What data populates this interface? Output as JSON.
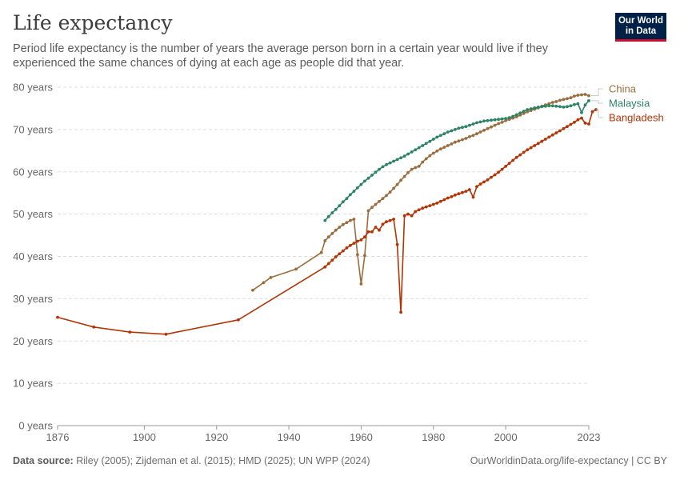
{
  "header": {
    "title": "Life expectancy",
    "subtitle": "Period life expectancy is the number of years the average person born in a certain year would live if they experienced the same chances of dying at each age as people did that year."
  },
  "logo": {
    "line1": "Our World",
    "line2": "in Data",
    "bg": "#002147",
    "accent": "#c8102e"
  },
  "footer": {
    "source_label": "Data source:",
    "source_text": "Riley (2005); Zijdeman et al. (2015); HMD (2025); UN WPP (2024)",
    "link": "OurWorldinData.org/life-expectancy",
    "license": "CC BY"
  },
  "chart_data": {
    "type": "line",
    "title": "Life expectancy",
    "xlim": [
      1876,
      2023
    ],
    "ylim": [
      0,
      80
    ],
    "y_ticks": [
      0,
      10,
      20,
      30,
      40,
      50,
      60,
      70,
      80
    ],
    "y_tick_labels": [
      "0 years",
      "10 years",
      "20 years",
      "30 years",
      "40 years",
      "50 years",
      "60 years",
      "70 years",
      "80 years"
    ],
    "x_ticks": [
      1876,
      1900,
      1920,
      1940,
      1960,
      1980,
      2000,
      2023
    ],
    "x_tick_labels": [
      "1876",
      "1900",
      "1920",
      "1940",
      "1960",
      "1980",
      "2000",
      "2023"
    ],
    "grid": "horizontal dashed",
    "legend": "right (labels at line ends)",
    "series": [
      {
        "name": "China",
        "color": "#9a6d3f",
        "points": [
          [
            1930,
            32.0
          ],
          [
            1933,
            33.8
          ],
          [
            1935,
            35.0
          ],
          [
            1942,
            37.0
          ],
          [
            1949,
            40.9
          ],
          [
            1950,
            43.7
          ],
          [
            1951,
            44.6
          ],
          [
            1952,
            45.4
          ],
          [
            1953,
            46.2
          ],
          [
            1954,
            46.9
          ],
          [
            1955,
            47.5
          ],
          [
            1956,
            48.0
          ],
          [
            1957,
            48.5
          ],
          [
            1958,
            48.8
          ],
          [
            1959,
            40.4
          ],
          [
            1960,
            33.5
          ],
          [
            1961,
            40.2
          ],
          [
            1962,
            50.8
          ],
          [
            1963,
            51.6
          ],
          [
            1964,
            52.3
          ],
          [
            1965,
            53.0
          ],
          [
            1966,
            53.7
          ],
          [
            1967,
            54.4
          ],
          [
            1968,
            55.2
          ],
          [
            1969,
            56.1
          ],
          [
            1970,
            57.0
          ],
          [
            1971,
            58.0
          ],
          [
            1972,
            58.9
          ],
          [
            1973,
            59.8
          ],
          [
            1974,
            60.6
          ],
          [
            1975,
            61.0
          ],
          [
            1976,
            61.3
          ],
          [
            1977,
            62.3
          ],
          [
            1978,
            63.1
          ],
          [
            1979,
            63.8
          ],
          [
            1980,
            64.4
          ],
          [
            1981,
            64.9
          ],
          [
            1982,
            65.4
          ],
          [
            1983,
            65.8
          ],
          [
            1984,
            66.2
          ],
          [
            1985,
            66.6
          ],
          [
            1986,
            67.0
          ],
          [
            1987,
            67.3
          ],
          [
            1988,
            67.6
          ],
          [
            1989,
            67.9
          ],
          [
            1990,
            68.3
          ],
          [
            1991,
            68.6
          ],
          [
            1992,
            69.0
          ],
          [
            1993,
            69.4
          ],
          [
            1994,
            69.8
          ],
          [
            1995,
            70.2
          ],
          [
            1996,
            70.6
          ],
          [
            1997,
            71.0
          ],
          [
            1998,
            71.4
          ],
          [
            1999,
            71.7
          ],
          [
            2000,
            72.1
          ],
          [
            2001,
            72.4
          ],
          [
            2002,
            72.7
          ],
          [
            2003,
            73.0
          ],
          [
            2004,
            73.4
          ],
          [
            2005,
            73.8
          ],
          [
            2006,
            74.2
          ],
          [
            2007,
            74.5
          ],
          [
            2008,
            74.8
          ],
          [
            2009,
            75.1
          ],
          [
            2010,
            75.5
          ],
          [
            2011,
            75.8
          ],
          [
            2012,
            76.1
          ],
          [
            2013,
            76.4
          ],
          [
            2014,
            76.6
          ],
          [
            2015,
            76.9
          ],
          [
            2016,
            77.1
          ],
          [
            2017,
            77.3
          ],
          [
            2018,
            77.5
          ],
          [
            2019,
            77.9
          ],
          [
            2020,
            78.1
          ],
          [
            2021,
            78.2
          ],
          [
            2022,
            78.3
          ],
          [
            2023,
            78.0
          ]
        ]
      },
      {
        "name": "Malaysia",
        "color": "#2c8465",
        "points": [
          [
            1950,
            48.5
          ],
          [
            1951,
            49.4
          ],
          [
            1952,
            50.3
          ],
          [
            1953,
            51.1
          ],
          [
            1954,
            52.0
          ],
          [
            1955,
            52.9
          ],
          [
            1956,
            53.7
          ],
          [
            1957,
            54.6
          ],
          [
            1958,
            55.4
          ],
          [
            1959,
            56.2
          ],
          [
            1960,
            57.0
          ],
          [
            1961,
            57.8
          ],
          [
            1962,
            58.5
          ],
          [
            1963,
            59.2
          ],
          [
            1964,
            59.9
          ],
          [
            1965,
            60.6
          ],
          [
            1966,
            61.2
          ],
          [
            1967,
            61.7
          ],
          [
            1968,
            62.1
          ],
          [
            1969,
            62.5
          ],
          [
            1970,
            62.9
          ],
          [
            1971,
            63.3
          ],
          [
            1972,
            63.7
          ],
          [
            1973,
            64.2
          ],
          [
            1974,
            64.7
          ],
          [
            1975,
            65.2
          ],
          [
            1976,
            65.7
          ],
          [
            1977,
            66.2
          ],
          [
            1978,
            66.7
          ],
          [
            1979,
            67.2
          ],
          [
            1980,
            67.7
          ],
          [
            1981,
            68.2
          ],
          [
            1982,
            68.6
          ],
          [
            1983,
            69.0
          ],
          [
            1984,
            69.4
          ],
          [
            1985,
            69.7
          ],
          [
            1986,
            70.0
          ],
          [
            1987,
            70.3
          ],
          [
            1988,
            70.5
          ],
          [
            1989,
            70.7
          ],
          [
            1990,
            71.0
          ],
          [
            1991,
            71.3
          ],
          [
            1992,
            71.6
          ],
          [
            1993,
            71.8
          ],
          [
            1994,
            72.0
          ],
          [
            1995,
            72.1
          ],
          [
            1996,
            72.2
          ],
          [
            1997,
            72.3
          ],
          [
            1998,
            72.4
          ],
          [
            1999,
            72.5
          ],
          [
            2000,
            72.6
          ],
          [
            2001,
            72.8
          ],
          [
            2002,
            73.1
          ],
          [
            2003,
            73.5
          ],
          [
            2004,
            73.9
          ],
          [
            2005,
            74.3
          ],
          [
            2006,
            74.7
          ],
          [
            2007,
            74.9
          ],
          [
            2008,
            75.1
          ],
          [
            2009,
            75.3
          ],
          [
            2010,
            75.4
          ],
          [
            2011,
            75.5
          ],
          [
            2012,
            75.6
          ],
          [
            2013,
            75.6
          ],
          [
            2014,
            75.5
          ],
          [
            2015,
            75.4
          ],
          [
            2016,
            75.3
          ],
          [
            2017,
            75.4
          ],
          [
            2018,
            75.6
          ],
          [
            2019,
            75.9
          ],
          [
            2020,
            76.1
          ],
          [
            2021,
            74.0
          ],
          [
            2022,
            75.8
          ],
          [
            2023,
            76.8
          ]
        ]
      },
      {
        "name": "Bangladesh",
        "color": "#b13507",
        "points": [
          [
            1876,
            25.6
          ],
          [
            1886,
            23.3
          ],
          [
            1896,
            22.1
          ],
          [
            1906,
            21.6
          ],
          [
            1926,
            25.0
          ],
          [
            1950,
            37.5
          ],
          [
            1951,
            38.3
          ],
          [
            1952,
            39.1
          ],
          [
            1953,
            39.9
          ],
          [
            1954,
            40.6
          ],
          [
            1955,
            41.3
          ],
          [
            1956,
            42.0
          ],
          [
            1957,
            42.6
          ],
          [
            1958,
            43.1
          ],
          [
            1959,
            43.6
          ],
          [
            1960,
            43.9
          ],
          [
            1961,
            44.6
          ],
          [
            1962,
            45.8
          ],
          [
            1963,
            45.8
          ],
          [
            1964,
            46.9
          ],
          [
            1965,
            46.2
          ],
          [
            1966,
            47.6
          ],
          [
            1967,
            48.2
          ],
          [
            1968,
            48.5
          ],
          [
            1969,
            48.8
          ],
          [
            1970,
            42.8
          ],
          [
            1971,
            26.8
          ],
          [
            1972,
            49.6
          ],
          [
            1973,
            50.0
          ],
          [
            1974,
            49.6
          ],
          [
            1975,
            50.6
          ],
          [
            1976,
            51.0
          ],
          [
            1977,
            51.4
          ],
          [
            1978,
            51.7
          ],
          [
            1979,
            52.0
          ],
          [
            1980,
            52.3
          ],
          [
            1981,
            52.6
          ],
          [
            1982,
            53.0
          ],
          [
            1983,
            53.4
          ],
          [
            1984,
            53.8
          ],
          [
            1985,
            54.1
          ],
          [
            1986,
            54.5
          ],
          [
            1987,
            54.8
          ],
          [
            1988,
            55.1
          ],
          [
            1989,
            55.4
          ],
          [
            1990,
            55.8
          ],
          [
            1991,
            54.0
          ],
          [
            1992,
            56.5
          ],
          [
            1993,
            57.1
          ],
          [
            1994,
            57.6
          ],
          [
            1995,
            58.1
          ],
          [
            1996,
            58.7
          ],
          [
            1997,
            59.3
          ],
          [
            1998,
            59.9
          ],
          [
            1999,
            60.6
          ],
          [
            2000,
            61.3
          ],
          [
            2001,
            62.0
          ],
          [
            2002,
            62.7
          ],
          [
            2003,
            63.4
          ],
          [
            2004,
            64.0
          ],
          [
            2005,
            64.6
          ],
          [
            2006,
            65.2
          ],
          [
            2007,
            65.7
          ],
          [
            2008,
            66.2
          ],
          [
            2009,
            66.7
          ],
          [
            2010,
            67.2
          ],
          [
            2011,
            67.7
          ],
          [
            2012,
            68.2
          ],
          [
            2013,
            68.7
          ],
          [
            2014,
            69.2
          ],
          [
            2015,
            69.7
          ],
          [
            2016,
            70.2
          ],
          [
            2017,
            70.7
          ],
          [
            2018,
            71.2
          ],
          [
            2019,
            71.7
          ],
          [
            2020,
            72.3
          ],
          [
            2021,
            72.7
          ],
          [
            2022,
            71.5
          ],
          [
            2023,
            71.3
          ],
          [
            2024,
            74.2
          ],
          [
            2025,
            74.7
          ]
        ]
      }
    ]
  }
}
